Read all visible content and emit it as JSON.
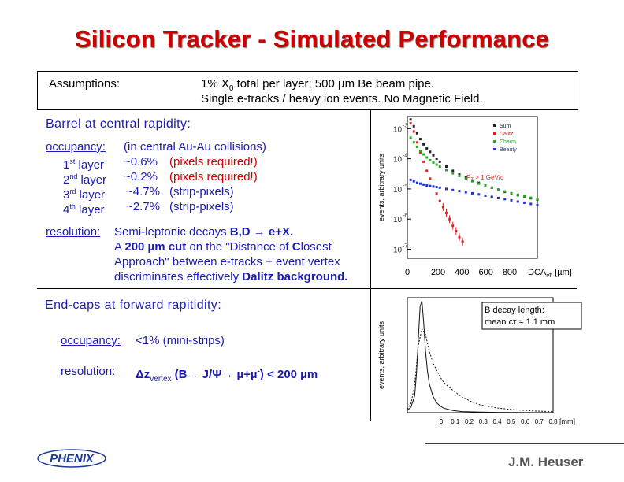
{
  "title": "Silicon Tracker - Simulated Performance",
  "assumptions": {
    "label": "Assumptions:",
    "line1": "1% X",
    "line1_sub": "0",
    "line1_rest": " total per layer;  500 µm Be  beam pipe.",
    "line2": "Single e-tracks / heavy ion events. No Magnetic Field."
  },
  "barrel": {
    "heading": "Barrel at central rapidity:",
    "occupancy_label": "occupancy:",
    "occupancy_note": "(in central Au-Au collisions)",
    "layers": [
      {
        "num": "1",
        "sup": "st",
        "word": " layer",
        "value": "~0.6%",
        "note": "(pixels required!)",
        "note_color": "red"
      },
      {
        "num": "2",
        "sup": "nd",
        "word": " layer",
        "value": "~0.2%",
        "note": "(pixels required!)",
        "note_color": "red"
      },
      {
        "num": "3",
        "sup": "rd",
        "word": " layer",
        "value": "~4.7%",
        "note": "(strip-pixels)",
        "note_color": "blue"
      },
      {
        "num": "4",
        "sup": "th",
        "word": " layer",
        "value": "~2.7%",
        "note": "(strip-pixels)",
        "note_color": "blue"
      }
    ],
    "resolution_label": "resolution:",
    "res_line1_a": "Semi-leptonic decays ",
    "res_line1_b": "B,D → e+X.",
    "res_line2_a": "A ",
    "res_line2_b": "200 µm cut",
    "res_line2_c": " on the \"Distance of ",
    "res_line2_d": "C",
    "res_line2_e": "losest",
    "res_line3": "Approach\" between e-tracks + event vertex",
    "res_line4_a": "discriminates effectively ",
    "res_line4_b": "Dalitz background."
  },
  "endcap": {
    "heading": "End-caps at forward rapitidity:",
    "occupancy_label": "occupancy:",
    "occupancy_value": "<1%  (mini-strips)",
    "resolution_label": "resolution:",
    "res_delta": "Δz",
    "res_sub": "vertex",
    "res_text": " (B→ J/Ψ→ µ+µ",
    "res_sup": "-",
    "res_tail": ")  < 200 µm"
  },
  "chart_data": [
    {
      "type": "scatter",
      "ylabel": "events, arbitrary units",
      "xlabel": "DCA",
      "xlabel_sub": "rΦ",
      "xlabel_unit": " [µm]",
      "y_log": true,
      "y_ticks": [
        "10",
        "10",
        "10",
        "10",
        "10"
      ],
      "y_tick_exps": [
        "-3",
        "-4",
        "-5",
        "-6",
        "-7"
      ],
      "x_ticks": [
        "0",
        "200",
        "400",
        "600",
        "800"
      ],
      "annotation": "P",
      "annotation_sub": "T",
      "annotation_rest": " > 1 GeV/c",
      "legend": [
        {
          "name": "Sum",
          "color": "#222222"
        },
        {
          "name": "Dalitz",
          "color": "#dd2222"
        },
        {
          "name": "Charm",
          "color": "#22aa22"
        },
        {
          "name": "Beauty",
          "color": "#2233cc"
        }
      ],
      "series": [
        {
          "name": "Sum",
          "color": "#222222",
          "x": [
            20,
            40,
            60,
            80,
            100,
            120,
            140,
            160,
            180,
            200,
            240,
            280,
            320,
            360,
            400,
            440,
            480,
            520,
            560,
            600,
            640,
            680,
            720,
            760,
            800
          ],
          "y": [
            0.002,
            0.0012,
            0.0007,
            0.00045,
            0.0003,
            0.00022,
            0.00017,
            0.00013,
            0.0001,
            8e-05,
            5.5e-05,
            4e-05,
            3e-05,
            2.4e-05,
            1.9e-05,
            1.6e-05,
            1.3e-05,
            1.1e-05,
            9.5e-06,
            8e-06,
            7e-06,
            6.2e-06,
            5.5e-06,
            4.9e-06,
            4.4e-06
          ]
        },
        {
          "name": "Dalitz",
          "color": "#dd2222",
          "x": [
            20,
            40,
            60,
            80,
            100,
            120,
            140,
            160,
            180,
            200,
            220,
            240,
            260,
            280,
            300,
            320,
            340
          ],
          "y": [
            0.0015,
            0.0008,
            0.00035,
            0.00016,
            8e-05,
            4e-05,
            2.2e-05,
            1.2e-05,
            7e-06,
            4e-06,
            2.5e-06,
            1.6e-06,
            1e-06,
            6e-07,
            4e-07,
            2.5e-07,
            1.8e-07
          ]
        },
        {
          "name": "Charm",
          "color": "#22aa22",
          "x": [
            20,
            40,
            60,
            80,
            100,
            120,
            140,
            160,
            180,
            200,
            240,
            280,
            320,
            360,
            400,
            440,
            480,
            520,
            560,
            600,
            640,
            680,
            720,
            760,
            800
          ],
          "y": [
            0.0005,
            0.00035,
            0.00025,
            0.00018,
            0.00014,
            0.00011,
            9e-05,
            7.5e-05,
            6.4e-05,
            5.5e-05,
            4.2e-05,
            3.3e-05,
            2.7e-05,
            2.2e-05,
            1.8e-05,
            1.5e-05,
            1.3e-05,
            1.1e-05,
            9.5e-06,
            8.3e-06,
            7.3e-06,
            6.4e-06,
            5.7e-06,
            5.1e-06,
            4.6e-06
          ]
        },
        {
          "name": "Beauty",
          "color": "#2233cc",
          "x": [
            20,
            40,
            60,
            80,
            100,
            120,
            140,
            160,
            180,
            200,
            240,
            280,
            320,
            360,
            400,
            440,
            480,
            520,
            560,
            600,
            640,
            680,
            720,
            760,
            800
          ],
          "y": [
            2e-05,
            1.8e-05,
            1.6e-05,
            1.5e-05,
            1.4e-05,
            1.3e-05,
            1.25e-05,
            1.2e-05,
            1.15e-05,
            1.1e-05,
            1e-05,
            9.2e-06,
            8.5e-06,
            7.8e-06,
            7.2e-06,
            6.6e-06,
            6e-06,
            5.5e-06,
            5e-06,
            4.6e-06,
            4.2e-06,
            3.8e-06,
            3.5e-06,
            3.2e-06,
            2.9e-06
          ]
        }
      ]
    },
    {
      "type": "line",
      "ylabel": "events, arbitrary units",
      "xlabel_unit": "[mm]",
      "x_ticks": [
        "0",
        "0.1",
        "0.2",
        "0.3",
        "0.4",
        "0.5",
        "0.6",
        "0.7",
        "0.8"
      ],
      "annotation_line1": "B decay length:",
      "annotation_line2": "mean cτ ≈ 1.1 mm",
      "series": [
        {
          "name": "solid",
          "x": [
            0,
            0.02,
            0.04,
            0.05,
            0.06,
            0.07,
            0.08,
            0.09,
            0.1,
            0.11,
            0.12,
            0.14,
            0.16,
            0.18,
            0.2,
            0.25,
            0.3,
            0.4,
            0.5,
            0.6,
            0.7,
            0.8
          ],
          "y": [
            0.02,
            0.05,
            0.15,
            0.35,
            0.65,
            0.95,
            1.0,
            0.8,
            0.55,
            0.38,
            0.26,
            0.15,
            0.09,
            0.06,
            0.04,
            0.02,
            0.01,
            0.005,
            0.003,
            0.002,
            0.001,
            0.001
          ]
        },
        {
          "name": "dashed",
          "x": [
            0,
            0.02,
            0.04,
            0.06,
            0.08,
            0.1,
            0.12,
            0.14,
            0.16,
            0.18,
            0.2,
            0.25,
            0.3,
            0.35,
            0.4,
            0.5,
            0.6,
            0.7,
            0.8
          ],
          "y": [
            0.03,
            0.08,
            0.25,
            0.6,
            0.75,
            0.7,
            0.55,
            0.45,
            0.38,
            0.32,
            0.27,
            0.2,
            0.14,
            0.1,
            0.07,
            0.04,
            0.025,
            0.015,
            0.01
          ]
        }
      ]
    }
  ],
  "footer": {
    "logo_text": "PHENIX",
    "author": "J.M. Heuser",
    "accent": "#1f3a93"
  }
}
